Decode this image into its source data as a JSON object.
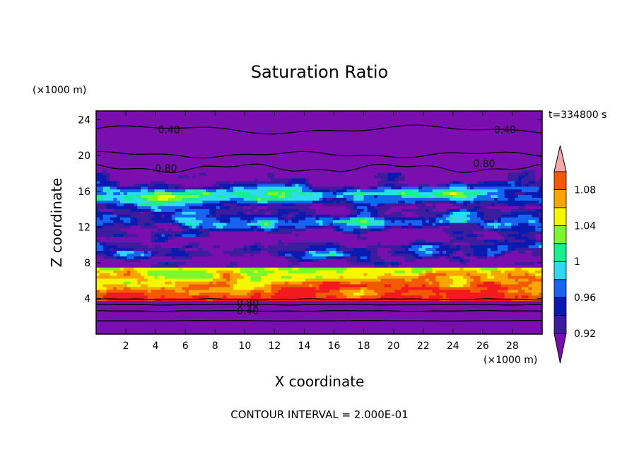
{
  "chart_data": {
    "type": "heatmap",
    "title": "Saturation Ratio",
    "xlabel": "X coordinate",
    "ylabel": "Z coordinate",
    "x_unit": "(×1000 m)",
    "z_unit": "(×1000 m)",
    "time_label": "t=334800 s",
    "footer": "CONTOUR INTERVAL = 2.000E-01",
    "xlim": [
      0,
      30
    ],
    "zlim": [
      0,
      25
    ],
    "x_ticks": [
      2,
      4,
      6,
      8,
      10,
      12,
      14,
      16,
      18,
      20,
      22,
      24,
      26,
      28
    ],
    "z_ticks": [
      4,
      8,
      12,
      16,
      20,
      24
    ],
    "colorbar": {
      "levels": [
        0.92,
        0.94,
        0.96,
        0.98,
        1.0,
        1.02,
        1.04,
        1.06,
        1.08,
        1.1
      ],
      "labels": [
        "0.92",
        "0.96",
        "1",
        "1.04",
        "1.08"
      ],
      "colors": [
        "#7a0faf",
        "#3d1d9e",
        "#0a1ab0",
        "#1565f0",
        "#2fd9ef",
        "#1aef8f",
        "#7ef62e",
        "#f6f600",
        "#f7a600",
        "#f25a00",
        "#f21b1b",
        "#f5a8a8"
      ],
      "extends": "both"
    },
    "contour_labels": [
      {
        "text": "0.40",
        "x": 4.9,
        "z": 22.9
      },
      {
        "text": "0.40",
        "x": 27.5,
        "z": 22.9
      },
      {
        "text": "0.80",
        "x": 4.7,
        "z": 18.6
      },
      {
        "text": "0.80",
        "x": 26.1,
        "z": 19.1
      },
      {
        "text": "0.80",
        "x": 10.2,
        "z": 3.5
      },
      {
        "text": "0.40",
        "x": 10.2,
        "z": 2.6
      }
    ]
  }
}
